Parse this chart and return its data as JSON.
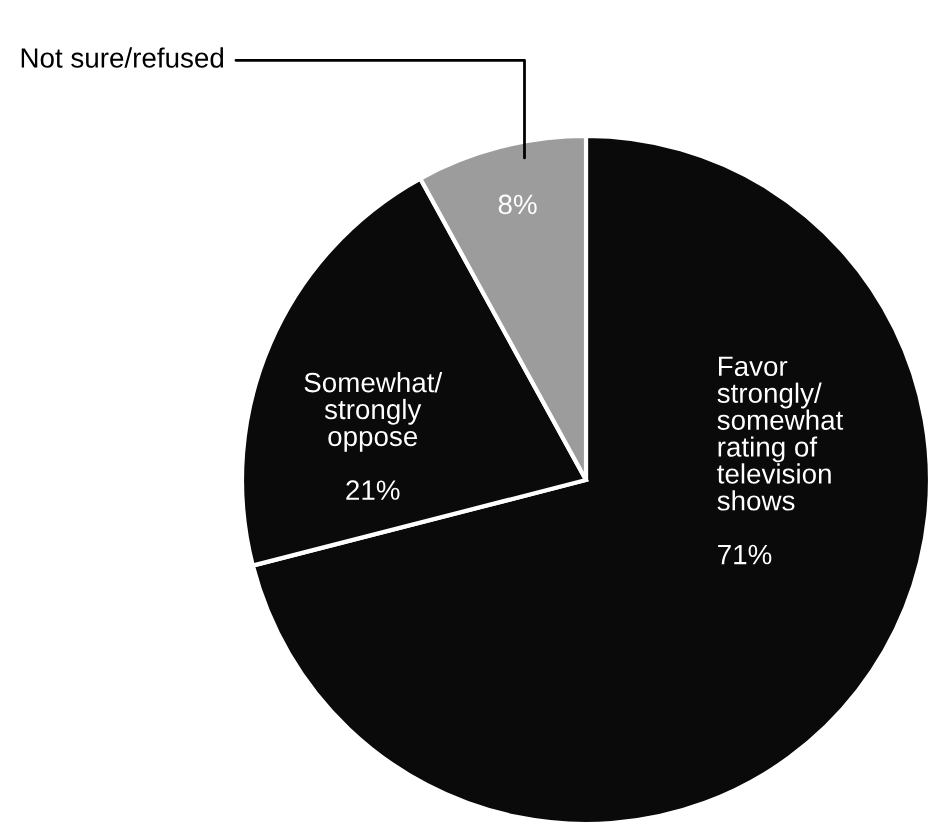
{
  "chart_data": {
    "type": "pie",
    "categories": [
      "Favor\nstrongly/\nsomewhat\nrating of\ntelevision\nshows",
      "Somewhat/\nstrongly\noppose",
      "Not sure/refused"
    ],
    "values": [
      71,
      21,
      8
    ],
    "colors": [
      "#0a0a0a",
      "#0a0a0a",
      "#9c9c9c"
    ],
    "value_labels": [
      "71%",
      "21%",
      "8%"
    ]
  }
}
